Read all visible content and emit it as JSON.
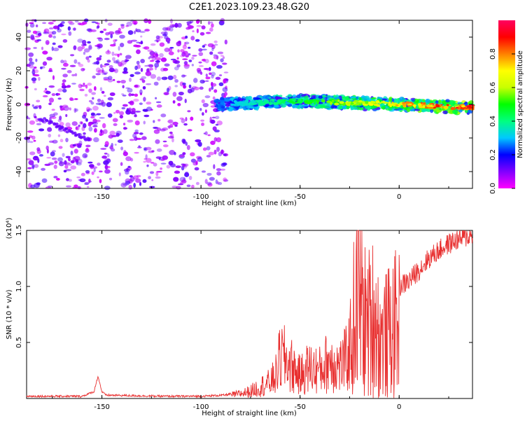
{
  "title": "C2E1.2023.109.23.48.G20",
  "chart_data": [
    {
      "type": "heatmap",
      "title": "C2E1.2023.109.23.48.G20",
      "xlabel": "Height of straight line (km)",
      "ylabel": "Frequency (Hz)",
      "xlim": [
        -188,
        37
      ],
      "ylim": [
        -50,
        50
      ],
      "x_ticks": [
        "-150",
        "-100",
        "-50",
        "0"
      ],
      "y_ticks": [
        "-40",
        "-20",
        "0",
        "20",
        "40"
      ],
      "colorbar": {
        "label": "Normalized spectral amplitude",
        "range": [
          0,
          1
        ],
        "ticks": [
          "0.0",
          "0.2",
          "0.4",
          "0.6",
          "0.8"
        ],
        "colormap": [
          "#ff00ff",
          "#8000ff",
          "#0000ff",
          "#00c8ff",
          "#00ff80",
          "#00ff00",
          "#c8ff00",
          "#ffff00",
          "#ff8000",
          "#ff0000",
          "#ff0060"
        ]
      },
      "features": [
        {
          "label": "diffuse noise",
          "x_range": [
            -188,
            -87
          ],
          "freq_range": [
            -50,
            50
          ],
          "amplitude": 0.1
        },
        {
          "label": "signal band",
          "x_range": [
            -92,
            37
          ],
          "center_freq": [
            [
              -92,
              0
            ],
            [
              -50,
              2
            ],
            [
              -25,
              1
            ],
            [
              0,
              0
            ],
            [
              37,
              -2
            ]
          ],
          "amplitude_range": [
            0.2,
            1.0
          ]
        }
      ]
    },
    {
      "type": "line",
      "xlabel": "Height of straight line (km)",
      "ylabel": "SNR (10 * v/v)",
      "y_multiplier": "(x10⁴)",
      "xlim": [
        -188,
        37
      ],
      "ylim": [
        0,
        1.5
      ],
      "x_ticks": [
        "-150",
        "-100",
        "-50",
        "0"
      ],
      "y_ticks": [
        "0.5",
        "1.0",
        "1.5"
      ],
      "color": "#e83030",
      "x": [
        -188,
        -160,
        -154,
        -152,
        -150,
        -148,
        -120,
        -100,
        -88,
        -80,
        -75,
        -70,
        -65,
        -62,
        -60,
        -56,
        -50,
        -46,
        -40,
        -35,
        -30,
        -26,
        -24,
        -22,
        -20,
        -18,
        -15,
        -12,
        -10,
        -5,
        0,
        5,
        10,
        15,
        20,
        25,
        30,
        37
      ],
      "y": [
        0.02,
        0.02,
        0.06,
        0.2,
        0.06,
        0.03,
        0.02,
        0.02,
        0.03,
        0.06,
        0.09,
        0.15,
        0.2,
        0.3,
        0.52,
        0.45,
        0.28,
        0.38,
        0.35,
        0.48,
        0.4,
        0.5,
        0.75,
        1.25,
        1.45,
        1.0,
        0.98,
        1.1,
        0.75,
        0.85,
        1.0,
        1.05,
        1.15,
        1.25,
        1.32,
        1.38,
        1.42,
        1.46
      ]
    }
  ]
}
